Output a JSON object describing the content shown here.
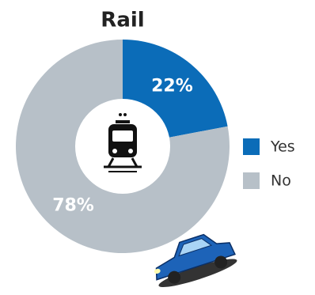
{
  "chart_data": {
    "type": "pie",
    "title": "Rail",
    "categories": [
      "Yes",
      "No"
    ],
    "values": [
      22,
      78
    ],
    "value_labels": [
      "22%",
      "78%"
    ],
    "colors": [
      "#0b6cb8",
      "#b7c0c8"
    ],
    "donut": true
  }
}
